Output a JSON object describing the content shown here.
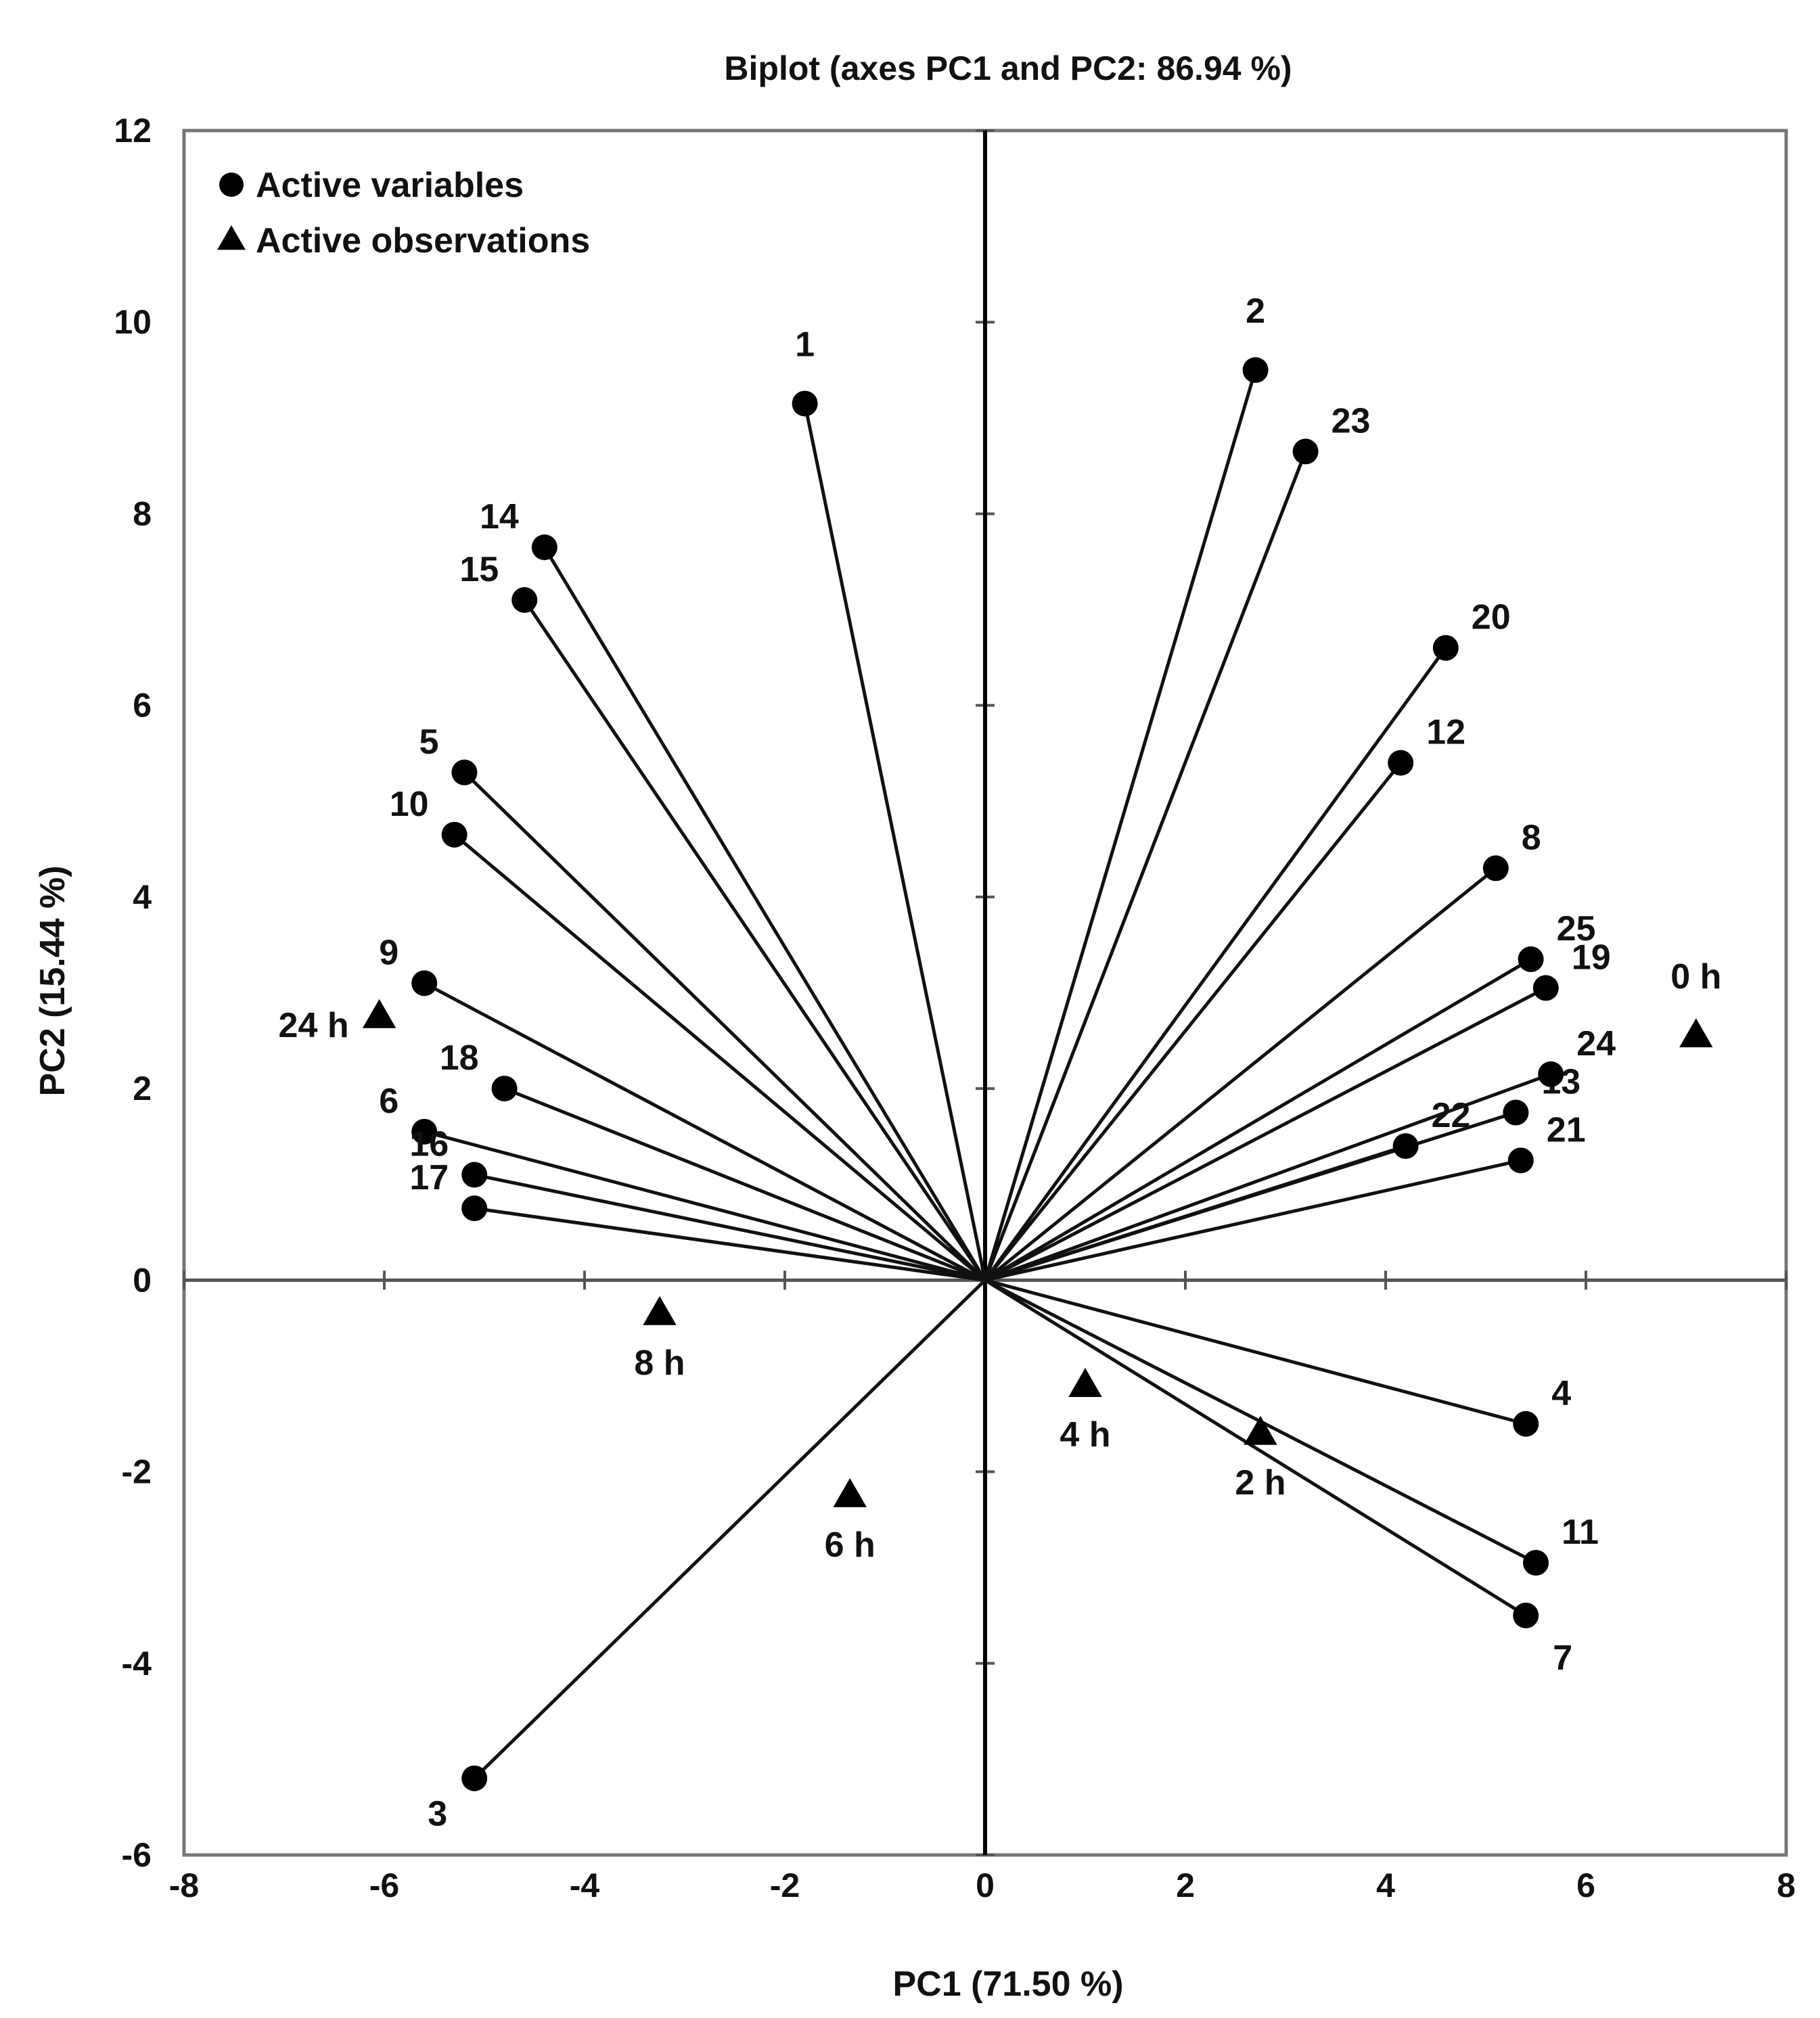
{
  "chart_data": {
    "type": "scatter",
    "subtype": "biplot",
    "title": "Biplot (axes PC1 and PC2: 86.94 %)",
    "xlabel": "PC1 (71.50 %)",
    "ylabel": "PC2 (15.44 %)",
    "xlim": [
      -8,
      8
    ],
    "ylim": [
      -6,
      12
    ],
    "xticks": [
      "-8",
      "-6",
      "-4",
      "-2",
      "0",
      "2",
      "4",
      "6",
      "8"
    ],
    "yticks": [
      "-6",
      "-4",
      "-2",
      "0",
      "2",
      "4",
      "6",
      "8",
      "10",
      "12"
    ],
    "legend": {
      "position": "top-left",
      "entries": [
        "Active variables",
        "Active observations"
      ]
    },
    "series": [
      {
        "name": "Active variables",
        "marker": "circle",
        "points": [
          {
            "label": "1",
            "x": -1.8,
            "y": 9.15
          },
          {
            "label": "2",
            "x": 2.7,
            "y": 9.5
          },
          {
            "label": "3",
            "x": -5.1,
            "y": -5.2
          },
          {
            "label": "4",
            "x": 5.4,
            "y": -1.5
          },
          {
            "label": "5",
            "x": -5.2,
            "y": 5.3
          },
          {
            "label": "6",
            "x": -5.6,
            "y": 1.55
          },
          {
            "label": "7",
            "x": 5.4,
            "y": -3.5
          },
          {
            "label": "8",
            "x": 5.1,
            "y": 4.3
          },
          {
            "label": "9",
            "x": -5.6,
            "y": 3.1
          },
          {
            "label": "10",
            "x": -5.3,
            "y": 4.65
          },
          {
            "label": "11",
            "x": 5.5,
            "y": -2.95
          },
          {
            "label": "12",
            "x": 4.15,
            "y": 5.4
          },
          {
            "label": "13",
            "x": 5.3,
            "y": 1.75
          },
          {
            "label": "14",
            "x": -4.4,
            "y": 7.65
          },
          {
            "label": "15",
            "x": -4.6,
            "y": 7.1
          },
          {
            "label": "16",
            "x": -5.1,
            "y": 1.1
          },
          {
            "label": "17",
            "x": -5.1,
            "y": 0.75
          },
          {
            "label": "18",
            "x": -4.8,
            "y": 2.0
          },
          {
            "label": "19",
            "x": 5.6,
            "y": 3.05
          },
          {
            "label": "20",
            "x": 4.6,
            "y": 6.6
          },
          {
            "label": "21",
            "x": 5.35,
            "y": 1.25
          },
          {
            "label": "22",
            "x": 4.2,
            "y": 1.4
          },
          {
            "label": "23",
            "x": 3.2,
            "y": 8.65
          },
          {
            "label": "24",
            "x": 5.65,
            "y": 2.15
          },
          {
            "label": "25",
            "x": 5.45,
            "y": 3.35
          }
        ]
      },
      {
        "name": "Active observations",
        "marker": "triangle",
        "points": [
          {
            "label": "0 h",
            "x": 7.1,
            "y": 2.55
          },
          {
            "label": "2 h",
            "x": 2.75,
            "y": -1.6
          },
          {
            "label": "4 h",
            "x": 1.0,
            "y": -1.1
          },
          {
            "label": "6 h",
            "x": -1.35,
            "y": -2.25
          },
          {
            "label": "8 h",
            "x": -3.25,
            "y": -0.35
          },
          {
            "label": "24 h",
            "x": -6.05,
            "y": 2.75
          }
        ]
      }
    ]
  }
}
